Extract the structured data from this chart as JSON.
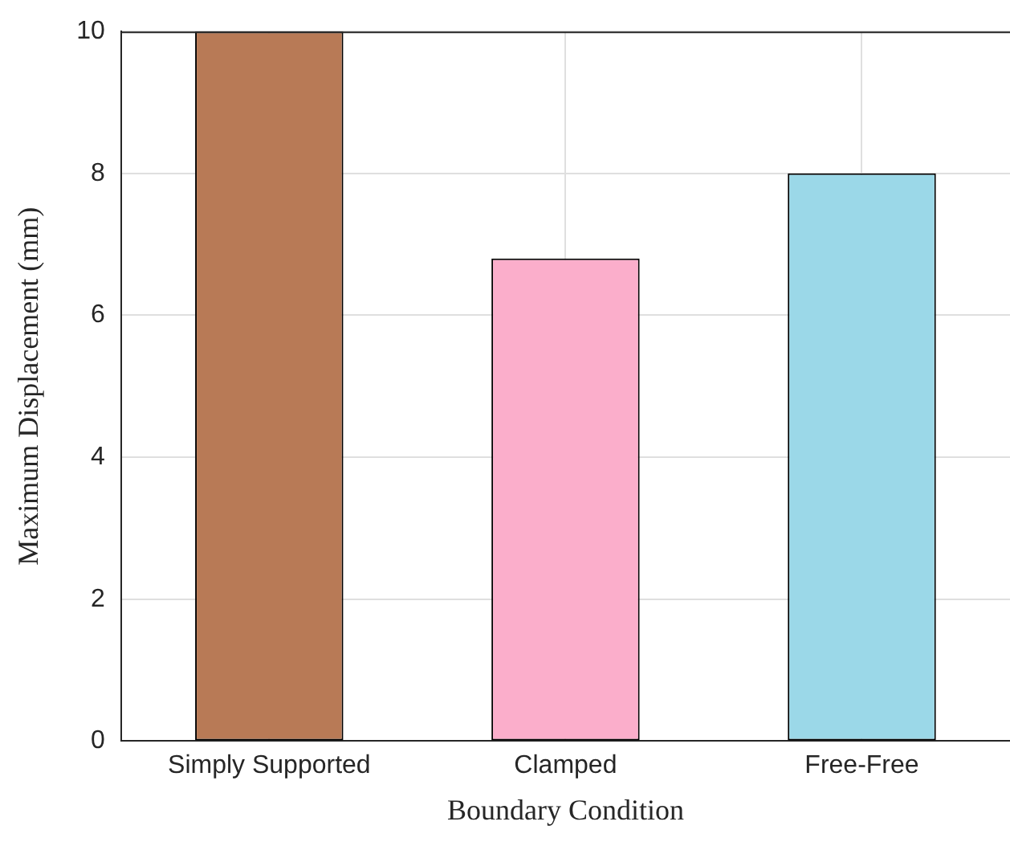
{
  "chart_data": {
    "type": "bar",
    "xlabel": "Boundary Condition",
    "ylabel": "Maximum Displacement (mm)",
    "categories": [
      "Simply Supported",
      "Clamped",
      "Free-Free"
    ],
    "values": [
      10,
      6.8,
      8
    ],
    "colors": [
      "#b87a56",
      "#fbaecb",
      "#9bd8e8"
    ],
    "ylim": [
      0,
      10
    ],
    "yticks": [
      0,
      2,
      4,
      6,
      8,
      10
    ],
    "grid": true
  }
}
